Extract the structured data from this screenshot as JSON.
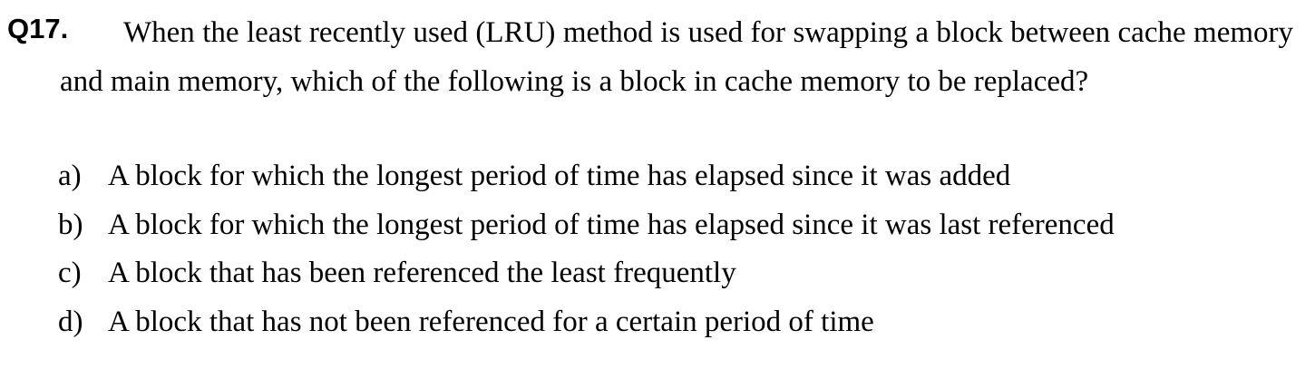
{
  "question": {
    "number": "Q17.",
    "stem": "When the least recently used (LRU) method is used for swapping a block between cache memory and main memory, which of the following is a block in cache memory to be replaced?",
    "options": [
      {
        "letter": "a)",
        "text": "A block for which the longest period of time has elapsed since it was added"
      },
      {
        "letter": "b)",
        "text": "A block for which the longest period of time has elapsed since it was last referenced"
      },
      {
        "letter": "c)",
        "text": "A block that has been referenced the least frequently"
      },
      {
        "letter": "d)",
        "text": "A block that has not been referenced for a certain period of time"
      }
    ]
  }
}
